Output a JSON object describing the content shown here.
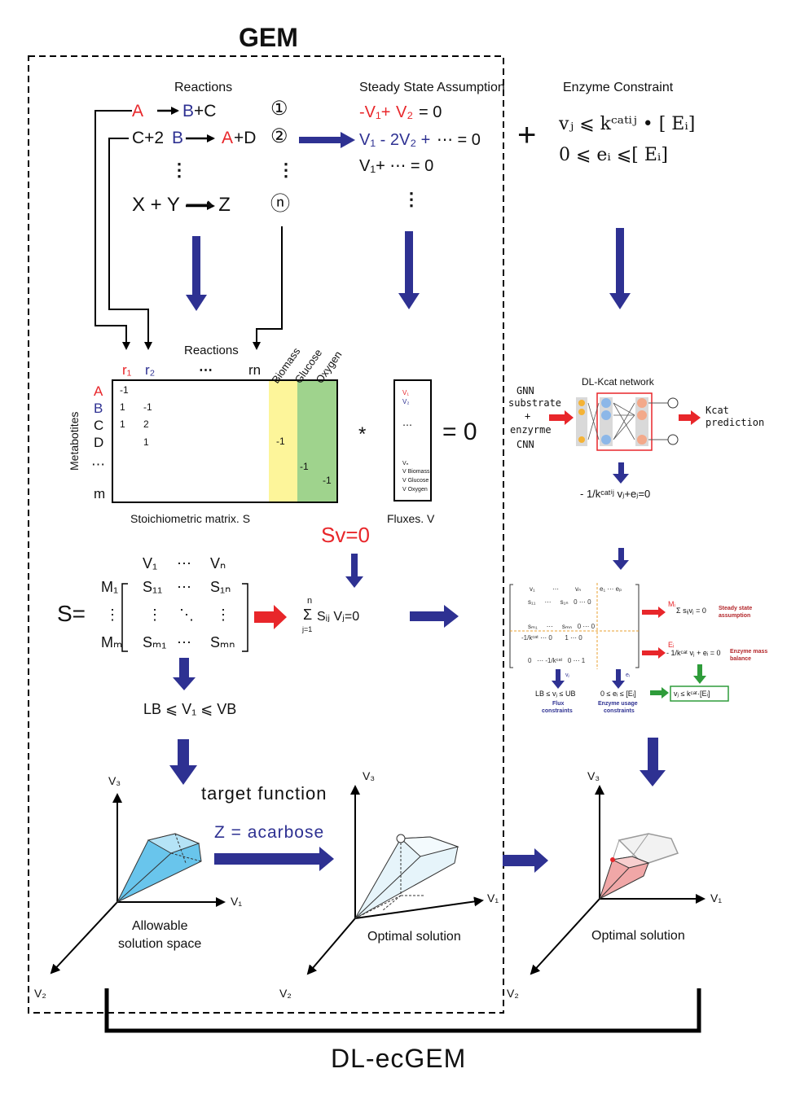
{
  "gem_label": "GEM",
  "dl_ecgem_label": "DL-ecGEM",
  "reactions_panel": {
    "header": "Reactions",
    "r1_left": "A",
    "r1_right_b": "B",
    "r1_right_c": "+C",
    "r1_num": "①",
    "r2_left": "C+2",
    "r2_left_b": "B",
    "r2_right_a": "A",
    "r2_right_d": "+D",
    "r2_num": "②",
    "vdots": "⋮",
    "rn_eq": "X + Y ⟶ Z",
    "rn_num": "ⓝ"
  },
  "steady_state": {
    "header": "Steady State Assumption",
    "eq1_a": "-V₁+",
    "eq1_b": "V₂",
    "eq1_c": "= 0",
    "eq2_a": "V₁ - 2V₂ +",
    "eq2_b": "⋯ = 0",
    "eq3": "V₁+ ⋯ = 0",
    "vdots": "⋮"
  },
  "enzyme_constraint": {
    "header": "Enzyme Constraint",
    "plus": "+",
    "line1": "vⱼ ⩽ kᶜᵃᵗⁱʲ • [ Eᵢ]",
    "line2": "0 ⩽ eᵢ ⩽[ Eᵢ]"
  },
  "matrix": {
    "col_r1": "r₁",
    "col_r2": "r₂",
    "col_dots": "⋯",
    "col_rn": "rn",
    "reactions_label": "Reactions",
    "biomass": "Biomass",
    "glucose": "Glucose",
    "oxygen": "Oxygen",
    "rows": [
      "A",
      "B",
      "C",
      "D",
      "⋯",
      "m"
    ],
    "metabolites_label": "Metabotites",
    "cells": [
      {
        "r": 0,
        "c": 0,
        "v": "-1"
      },
      {
        "r": 1,
        "c": 0,
        "v": "1"
      },
      {
        "r": 1,
        "c": 1,
        "v": "-1"
      },
      {
        "r": 2,
        "c": 0,
        "v": "1"
      },
      {
        "r": 2,
        "c": 1,
        "v": "2"
      },
      {
        "r": 3,
        "c": 1,
        "v": "1"
      }
    ],
    "biomass_val": "-1",
    "glucose_val": "-1",
    "oxygen_val": "-1",
    "caption": "Stoichiometric matrix. S",
    "colors": {
      "biomass": "#fdf59a",
      "glucose_oxygen": "#9fd38d"
    }
  },
  "flux_vector": {
    "v1": "V₁",
    "v2": "V₂",
    "dots": "⋯",
    "vn": "Vₙ",
    "vbiomass": "V Biomass",
    "vglucose": "V Glucose",
    "voxygen": "V Oxygen",
    "caption": "Fluxes. V",
    "star": "*",
    "eq_zero": "= 0"
  },
  "sv0": "Sv=0",
  "s_matrix": {
    "s_eq": "S=",
    "col_v1": "V₁",
    "col_dots": "⋯",
    "col_vn": "Vₙ",
    "row_m1": "M₁",
    "row_vdots": "⋮",
    "row_mm": "Mₘ",
    "s11": "S₁₁",
    "s1n": "S₁ₙ",
    "sm1": "Sₘ₁",
    "smn": "Sₘₙ",
    "hdots": "⋯",
    "vdots": "⋮",
    "ddots": "⋱",
    "sum_top": "n",
    "sum_sign": "Σ",
    "sum_body": "Sᵢⱼ Vⱼ=0",
    "sum_bottom": "j=1",
    "bounds": "LB ⩽ V₁ ⩽ VB"
  },
  "dl_kcat": {
    "title": "DL-Kcat network",
    "input_gnn": "GNN",
    "input_substrate": "substrate",
    "input_plus": "+",
    "input_enzyme": "enzyrme",
    "input_cnn": "CNN",
    "output": "Kcat",
    "output2": "prediction",
    "equation": "- 1/kᶜᵃᵗⁱʲ vⱼ+eⱼ=0"
  },
  "ec_matrix": {
    "m1_label": "Mᵢ",
    "sum": "Σ sᵢⱼvⱼ = 0",
    "steady_state": "Steady state",
    "assumption": "assumption",
    "e_label": "Eᵢ",
    "enzyme_eq": "- 1/kᶜᵃᵗ vⱼ + eᵢ = 0",
    "enzyme_mass": "Enzyme mass",
    "balance": "balance",
    "green_box": "vⱼ ≤ kᶜᵃᵗ·[Eᵢ]",
    "flux_bounds": "LB ≤ vⱼ ≤ UB",
    "flux_constraints": "Flux",
    "flux_constraints2": "constraints",
    "enzyme_bounds": "0 ≤ eᵢ ≤ [Eᵢ]",
    "enzyme_usage": "Enzyme usage",
    "enzyme_usage2": "constraints",
    "vj": "vⱼ",
    "ei": "eᵢ"
  },
  "bottom": {
    "target_function": "target function",
    "z_acarbose": "Z = acarbose",
    "allowable": "Allowable",
    "solution_space": "solution space",
    "optimal1": "Optimal solution",
    "optimal2": "Optimal solution",
    "v1": "V₁",
    "v2": "V₂",
    "v3": "V₃"
  }
}
